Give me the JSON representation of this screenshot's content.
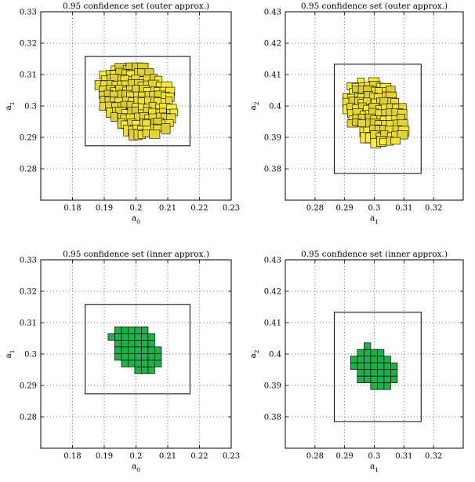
{
  "chart_data": [
    {
      "type": "scatter",
      "title": "0.95 confidence set (outer approx.)",
      "xlabel": "a",
      "xlabel_sub": "0",
      "ylabel": "a",
      "ylabel_sub": "1",
      "xlim": [
        0.17,
        0.23
      ],
      "ylim": [
        0.27,
        0.33
      ],
      "xticks": [
        0.18,
        0.19,
        0.2,
        0.21,
        0.22,
        0.23
      ],
      "xtick_labels": [
        "0.18",
        "0.19",
        "0.2",
        "0.21",
        "0.22",
        "0.23"
      ],
      "yticks": [
        0.28,
        0.29,
        0.3,
        0.31,
        0.32,
        0.33
      ],
      "ytick_labels": [
        "0.28",
        "0.29",
        "0.3",
        "0.31",
        "0.32",
        "0.33"
      ],
      "grid": true,
      "box": {
        "x": [
          0.184,
          0.217
        ],
        "y": [
          0.2873,
          0.3158
        ]
      },
      "region": {
        "kind": "outer",
        "color": "#ffef3c",
        "edge": "#000000",
        "center": [
          0.2,
          0.302
        ],
        "radii": [
          0.0132,
          0.01
        ],
        "tilt_deg": -38
      }
    },
    {
      "type": "scatter",
      "title": "0.95 confidence set (outer approx.)",
      "xlabel": "a",
      "xlabel_sub": "1",
      "ylabel": "a",
      "ylabel_sub": "2",
      "xlim": [
        0.27,
        0.33
      ],
      "ylim": [
        0.37,
        0.43
      ],
      "xticks": [
        0.28,
        0.29,
        0.3,
        0.31,
        0.32
      ],
      "xtick_labels": [
        "0.28",
        "0.29",
        "0.3",
        "0.31",
        "0.32"
      ],
      "yticks": [
        0.38,
        0.39,
        0.4,
        0.41,
        0.42,
        0.43
      ],
      "ytick_labels": [
        "0.38",
        "0.39",
        "0.4",
        "0.41",
        "0.42",
        "0.43"
      ],
      "grid": true,
      "box": {
        "x": [
          0.2865,
          0.3158
        ],
        "y": [
          0.3785,
          0.4133
        ]
      },
      "region": {
        "kind": "outer",
        "color": "#ffef3c",
        "edge": "#000000",
        "center": [
          0.3,
          0.3985
        ],
        "radii": [
          0.0115,
          0.0088
        ],
        "tilt_deg": -45
      }
    },
    {
      "type": "scatter",
      "title": "0.95 confidence set (inner approx.)",
      "xlabel": "a",
      "xlabel_sub": "0",
      "ylabel": "a",
      "ylabel_sub": "1",
      "xlim": [
        0.17,
        0.23
      ],
      "ylim": [
        0.27,
        0.33
      ],
      "xticks": [
        0.18,
        0.19,
        0.2,
        0.21,
        0.22,
        0.23
      ],
      "xtick_labels": [
        "0.18",
        "0.19",
        "0.2",
        "0.21",
        "0.22",
        "0.23"
      ],
      "yticks": [
        0.28,
        0.29,
        0.3,
        0.31,
        0.32,
        0.33
      ],
      "ytick_labels": [
        "0.28",
        "0.29",
        "0.3",
        "0.31",
        "0.32",
        "0.33"
      ],
      "grid": true,
      "box": {
        "x": [
          0.184,
          0.217
        ],
        "y": [
          0.2873,
          0.3158
        ]
      },
      "region": {
        "kind": "inner",
        "color": "#1fb24a",
        "edge": "#000000",
        "center": [
          0.2005,
          0.3015
        ],
        "radii": [
          0.0095,
          0.0065
        ],
        "tilt_deg": -42
      }
    },
    {
      "type": "scatter",
      "title": "0.95 confidence set (inner approx.)",
      "xlabel": "a",
      "xlabel_sub": "1",
      "ylabel": "a",
      "ylabel_sub": "2",
      "xlim": [
        0.27,
        0.33
      ],
      "ylim": [
        0.37,
        0.43
      ],
      "xticks": [
        0.28,
        0.29,
        0.3,
        0.31,
        0.32
      ],
      "xtick_labels": [
        "0.28",
        "0.29",
        "0.3",
        "0.31",
        "0.32"
      ],
      "yticks": [
        0.38,
        0.39,
        0.4,
        0.41,
        0.42,
        0.43
      ],
      "ytick_labels": [
        "0.38",
        "0.39",
        "0.4",
        "0.41",
        "0.42",
        "0.43"
      ],
      "grid": true,
      "box": {
        "x": [
          0.2865,
          0.3158
        ],
        "y": [
          0.3785,
          0.4133
        ]
      },
      "region": {
        "kind": "inner",
        "color": "#1fb24a",
        "edge": "#000000",
        "center": [
          0.3,
          0.3955
        ],
        "radii": [
          0.0085,
          0.0058
        ],
        "tilt_deg": -42
      }
    }
  ]
}
